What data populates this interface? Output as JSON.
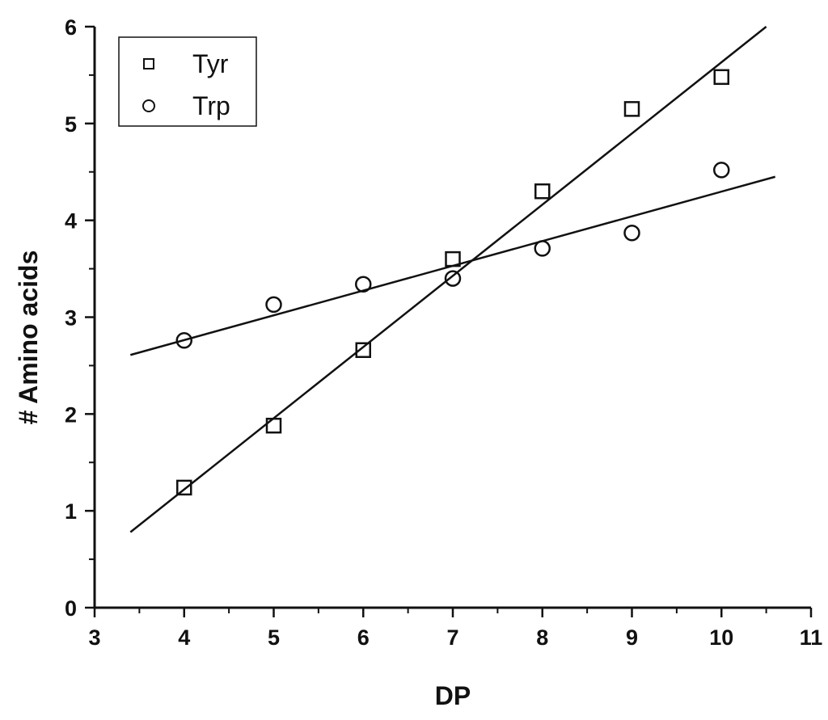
{
  "chart_data": {
    "type": "scatter",
    "title": "",
    "xlabel": "DP",
    "ylabel": "# Amino acids",
    "xlim": [
      3,
      11
    ],
    "ylim": [
      0,
      6
    ],
    "x_ticks": [
      3,
      4,
      5,
      6,
      7,
      8,
      9,
      10,
      11
    ],
    "y_ticks": [
      0,
      1,
      2,
      3,
      4,
      5,
      6
    ],
    "grid": false,
    "legend": "top-left",
    "series": [
      {
        "name": "Tyr",
        "marker": "square",
        "x": [
          4,
          5,
          6,
          7,
          8,
          9,
          10
        ],
        "y": [
          1.24,
          1.88,
          2.66,
          3.6,
          4.3,
          5.15,
          5.48
        ],
        "fit": {
          "x": [
            3.4,
            10.5
          ],
          "y": [
            0.78,
            6.0
          ]
        }
      },
      {
        "name": "Trp",
        "marker": "circle",
        "x": [
          4,
          5,
          6,
          7,
          8,
          9,
          10
        ],
        "y": [
          2.76,
          3.13,
          3.34,
          3.4,
          3.71,
          3.87,
          4.52
        ],
        "fit": {
          "x": [
            3.4,
            10.6
          ],
          "y": [
            2.61,
            4.45
          ]
        }
      }
    ],
    "colors": {
      "marker": "#111111",
      "line": "#111111",
      "background": "#ffffff"
    }
  }
}
